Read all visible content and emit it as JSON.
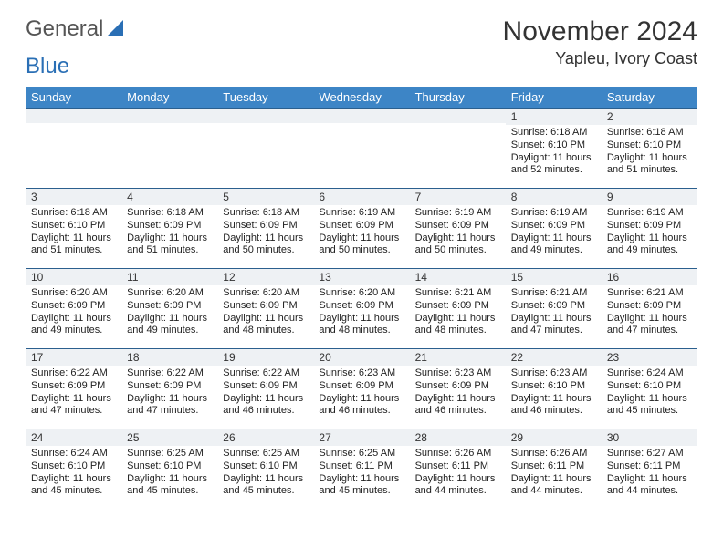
{
  "brand": {
    "part1": "General",
    "part2": "Blue"
  },
  "title": "November 2024",
  "location": "Yapleu, Ivory Coast",
  "colors": {
    "header_bg": "#3d85c6",
    "header_text": "#ffffff",
    "row_border": "#2b5f8e",
    "daynum_bg": "#eef1f4",
    "text": "#222222",
    "logo_blue": "#2a6fb5"
  },
  "day_headers": [
    "Sunday",
    "Monday",
    "Tuesday",
    "Wednesday",
    "Thursday",
    "Friday",
    "Saturday"
  ],
  "weeks": [
    [
      {
        "n": "",
        "sr": "",
        "ss": "",
        "dl": ""
      },
      {
        "n": "",
        "sr": "",
        "ss": "",
        "dl": ""
      },
      {
        "n": "",
        "sr": "",
        "ss": "",
        "dl": ""
      },
      {
        "n": "",
        "sr": "",
        "ss": "",
        "dl": ""
      },
      {
        "n": "",
        "sr": "",
        "ss": "",
        "dl": ""
      },
      {
        "n": "1",
        "sr": "Sunrise: 6:18 AM",
        "ss": "Sunset: 6:10 PM",
        "dl": "Daylight: 11 hours and 52 minutes."
      },
      {
        "n": "2",
        "sr": "Sunrise: 6:18 AM",
        "ss": "Sunset: 6:10 PM",
        "dl": "Daylight: 11 hours and 51 minutes."
      }
    ],
    [
      {
        "n": "3",
        "sr": "Sunrise: 6:18 AM",
        "ss": "Sunset: 6:10 PM",
        "dl": "Daylight: 11 hours and 51 minutes."
      },
      {
        "n": "4",
        "sr": "Sunrise: 6:18 AM",
        "ss": "Sunset: 6:09 PM",
        "dl": "Daylight: 11 hours and 51 minutes."
      },
      {
        "n": "5",
        "sr": "Sunrise: 6:18 AM",
        "ss": "Sunset: 6:09 PM",
        "dl": "Daylight: 11 hours and 50 minutes."
      },
      {
        "n": "6",
        "sr": "Sunrise: 6:19 AM",
        "ss": "Sunset: 6:09 PM",
        "dl": "Daylight: 11 hours and 50 minutes."
      },
      {
        "n": "7",
        "sr": "Sunrise: 6:19 AM",
        "ss": "Sunset: 6:09 PM",
        "dl": "Daylight: 11 hours and 50 minutes."
      },
      {
        "n": "8",
        "sr": "Sunrise: 6:19 AM",
        "ss": "Sunset: 6:09 PM",
        "dl": "Daylight: 11 hours and 49 minutes."
      },
      {
        "n": "9",
        "sr": "Sunrise: 6:19 AM",
        "ss": "Sunset: 6:09 PM",
        "dl": "Daylight: 11 hours and 49 minutes."
      }
    ],
    [
      {
        "n": "10",
        "sr": "Sunrise: 6:20 AM",
        "ss": "Sunset: 6:09 PM",
        "dl": "Daylight: 11 hours and 49 minutes."
      },
      {
        "n": "11",
        "sr": "Sunrise: 6:20 AM",
        "ss": "Sunset: 6:09 PM",
        "dl": "Daylight: 11 hours and 49 minutes."
      },
      {
        "n": "12",
        "sr": "Sunrise: 6:20 AM",
        "ss": "Sunset: 6:09 PM",
        "dl": "Daylight: 11 hours and 48 minutes."
      },
      {
        "n": "13",
        "sr": "Sunrise: 6:20 AM",
        "ss": "Sunset: 6:09 PM",
        "dl": "Daylight: 11 hours and 48 minutes."
      },
      {
        "n": "14",
        "sr": "Sunrise: 6:21 AM",
        "ss": "Sunset: 6:09 PM",
        "dl": "Daylight: 11 hours and 48 minutes."
      },
      {
        "n": "15",
        "sr": "Sunrise: 6:21 AM",
        "ss": "Sunset: 6:09 PM",
        "dl": "Daylight: 11 hours and 47 minutes."
      },
      {
        "n": "16",
        "sr": "Sunrise: 6:21 AM",
        "ss": "Sunset: 6:09 PM",
        "dl": "Daylight: 11 hours and 47 minutes."
      }
    ],
    [
      {
        "n": "17",
        "sr": "Sunrise: 6:22 AM",
        "ss": "Sunset: 6:09 PM",
        "dl": "Daylight: 11 hours and 47 minutes."
      },
      {
        "n": "18",
        "sr": "Sunrise: 6:22 AM",
        "ss": "Sunset: 6:09 PM",
        "dl": "Daylight: 11 hours and 47 minutes."
      },
      {
        "n": "19",
        "sr": "Sunrise: 6:22 AM",
        "ss": "Sunset: 6:09 PM",
        "dl": "Daylight: 11 hours and 46 minutes."
      },
      {
        "n": "20",
        "sr": "Sunrise: 6:23 AM",
        "ss": "Sunset: 6:09 PM",
        "dl": "Daylight: 11 hours and 46 minutes."
      },
      {
        "n": "21",
        "sr": "Sunrise: 6:23 AM",
        "ss": "Sunset: 6:09 PM",
        "dl": "Daylight: 11 hours and 46 minutes."
      },
      {
        "n": "22",
        "sr": "Sunrise: 6:23 AM",
        "ss": "Sunset: 6:10 PM",
        "dl": "Daylight: 11 hours and 46 minutes."
      },
      {
        "n": "23",
        "sr": "Sunrise: 6:24 AM",
        "ss": "Sunset: 6:10 PM",
        "dl": "Daylight: 11 hours and 45 minutes."
      }
    ],
    [
      {
        "n": "24",
        "sr": "Sunrise: 6:24 AM",
        "ss": "Sunset: 6:10 PM",
        "dl": "Daylight: 11 hours and 45 minutes."
      },
      {
        "n": "25",
        "sr": "Sunrise: 6:25 AM",
        "ss": "Sunset: 6:10 PM",
        "dl": "Daylight: 11 hours and 45 minutes."
      },
      {
        "n": "26",
        "sr": "Sunrise: 6:25 AM",
        "ss": "Sunset: 6:10 PM",
        "dl": "Daylight: 11 hours and 45 minutes."
      },
      {
        "n": "27",
        "sr": "Sunrise: 6:25 AM",
        "ss": "Sunset: 6:11 PM",
        "dl": "Daylight: 11 hours and 45 minutes."
      },
      {
        "n": "28",
        "sr": "Sunrise: 6:26 AM",
        "ss": "Sunset: 6:11 PM",
        "dl": "Daylight: 11 hours and 44 minutes."
      },
      {
        "n": "29",
        "sr": "Sunrise: 6:26 AM",
        "ss": "Sunset: 6:11 PM",
        "dl": "Daylight: 11 hours and 44 minutes."
      },
      {
        "n": "30",
        "sr": "Sunrise: 6:27 AM",
        "ss": "Sunset: 6:11 PM",
        "dl": "Daylight: 11 hours and 44 minutes."
      }
    ]
  ]
}
